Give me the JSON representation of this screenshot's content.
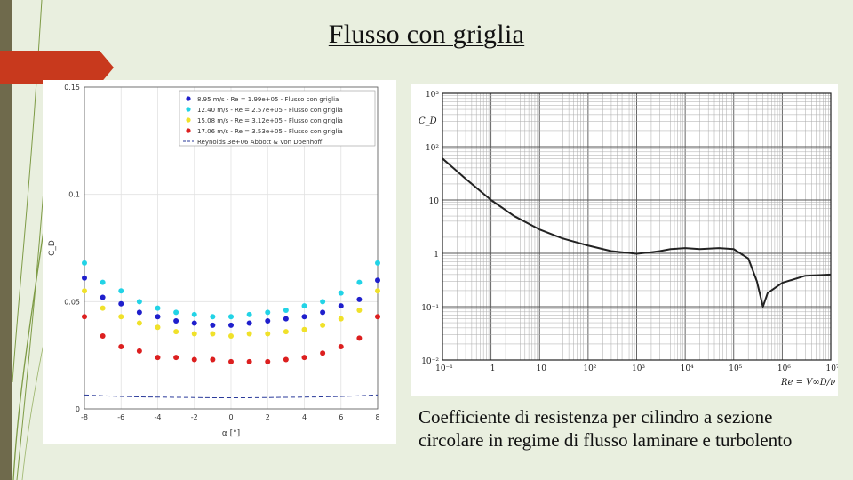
{
  "slide": {
    "title": "Flusso con griglia",
    "caption_line1": "Coefficiente di resistenza per cilindro a sezione",
    "caption_line2": "circolare in regime di flusso laminare e turbolento"
  },
  "chart_data": [
    {
      "type": "scatter",
      "xlabel": "α [°]",
      "ylabel": "C_D",
      "xlim": [
        -8,
        8
      ],
      "ylim": [
        0,
        0.15
      ],
      "x_ticks": [
        "-8",
        "-6",
        "-4",
        "-2",
        "0",
        "2",
        "4",
        "6",
        "8"
      ],
      "y_ticks": [
        "0",
        "0.05",
        "0.1",
        "0.15"
      ],
      "grid": true,
      "legend": "top-right",
      "x": [
        -8,
        -7,
        -6,
        -5,
        -4,
        -3,
        -2,
        -1,
        0,
        1,
        2,
        3,
        4,
        5,
        6,
        7,
        8
      ],
      "series": [
        {
          "name": "8.95 m/s - Re = 1.99e+05 - Flusso con griglia",
          "color": "#1f1fcc",
          "values": [
            0.061,
            0.052,
            0.049,
            0.045,
            0.043,
            0.041,
            0.04,
            0.039,
            0.039,
            0.04,
            0.041,
            0.042,
            0.043,
            0.045,
            0.048,
            0.051,
            0.06
          ]
        },
        {
          "name": "12.40 m/s - Re = 2.57e+05 - Flusso con griglia",
          "color": "#22d3e6",
          "values": [
            0.068,
            0.059,
            0.055,
            0.05,
            0.047,
            0.045,
            0.044,
            0.043,
            0.043,
            0.044,
            0.045,
            0.046,
            0.048,
            0.05,
            0.054,
            0.059,
            0.068
          ]
        },
        {
          "name": "15.08 m/s - Re = 3.12e+05 - Flusso con griglia",
          "color": "#f0e12a",
          "values": [
            0.055,
            0.047,
            0.043,
            0.04,
            0.038,
            0.036,
            0.035,
            0.035,
            0.034,
            0.035,
            0.035,
            0.036,
            0.037,
            0.039,
            0.042,
            0.046,
            0.055
          ]
        },
        {
          "name": "17.06 m/s - Re = 3.53e+05 - Flusso con griglia",
          "color": "#dc1f1f",
          "values": [
            0.043,
            0.034,
            0.029,
            0.027,
            0.024,
            0.024,
            0.023,
            0.023,
            0.022,
            0.022,
            0.022,
            0.023,
            0.024,
            0.026,
            0.029,
            0.033,
            0.043
          ]
        },
        {
          "name": "Reynolds 3e+06 Abbott & Von Doenhoff",
          "color": "#2a3a9a",
          "line": true,
          "values": [
            0.0065,
            0.0061,
            0.0058,
            0.0056,
            0.0055,
            0.0054,
            0.0053,
            0.0052,
            0.0052,
            0.0052,
            0.0053,
            0.0054,
            0.0055,
            0.0056,
            0.0058,
            0.0061,
            0.0065
          ]
        }
      ]
    },
    {
      "type": "line",
      "xlabel": "Re = V∞D/ν",
      "ylabel": "C_D",
      "xscale": "log",
      "yscale": "log",
      "xlim": [
        0.1,
        10000000
      ],
      "ylim": [
        0.01,
        1000
      ],
      "x_ticks": [
        "10⁻¹",
        "1",
        "10",
        "10²",
        "10³",
        "10⁴",
        "10⁵",
        "10⁶",
        "10⁷"
      ],
      "y_ticks": [
        "10³",
        "10²",
        "10",
        "1",
        "10⁻¹",
        "10⁻²"
      ],
      "grid": true,
      "series": [
        {
          "name": "",
          "x": [
            0.1,
            0.3,
            1,
            3,
            10,
            30,
            100,
            300,
            1000,
            2000,
            3000,
            5000,
            10000,
            20000,
            50000,
            100000,
            200000,
            300000,
            400000,
            500000,
            1000000,
            3000000,
            10000000
          ],
          "values": [
            60,
            25,
            10,
            5,
            2.8,
            1.9,
            1.4,
            1.1,
            0.98,
            1.05,
            1.1,
            1.2,
            1.25,
            1.2,
            1.25,
            1.2,
            0.8,
            0.3,
            0.1,
            0.18,
            0.28,
            0.38,
            0.4
          ]
        }
      ]
    }
  ]
}
